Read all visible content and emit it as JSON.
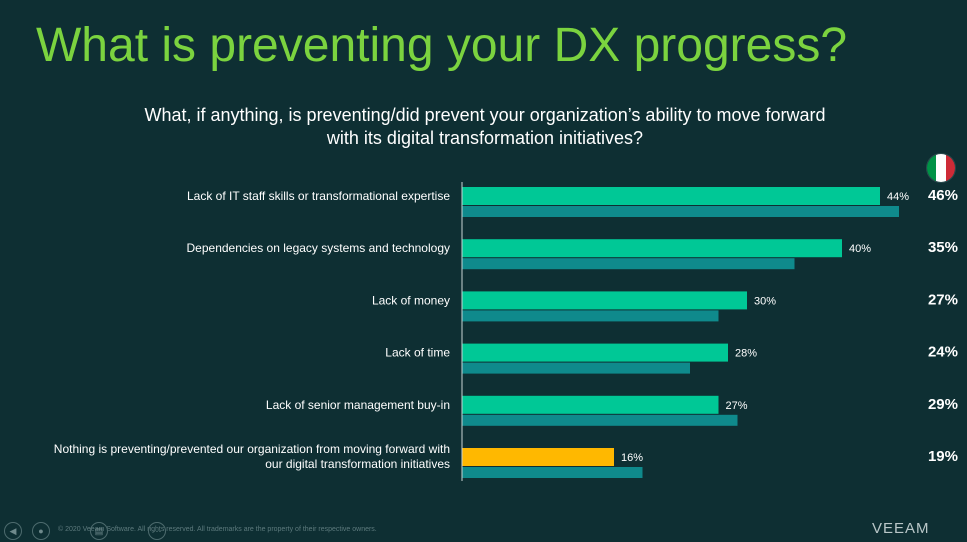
{
  "slide": {
    "title": "What is preventing your DX progress?",
    "subtitle": "What, if anything, is preventing/did prevent your organization’s ability to move forward with its digital transformation initiatives?"
  },
  "colors": {
    "background": "#0e2f33",
    "title": "#7bd33f",
    "bar_primary": "#00c896",
    "bar_secondary": "#0f8a8c",
    "bar_highlight": "#ffb800",
    "text": "#ffffff"
  },
  "chart_data": {
    "type": "bar",
    "orientation": "horizontal",
    "categories": [
      "Lack of IT staff skills or transformational expertise",
      "Dependencies on legacy systems and technology",
      "Lack of money",
      "Lack of time",
      "Lack of senior management buy-in",
      "Nothing is preventing/prevented our organization from moving forward with our digital transformation initiatives"
    ],
    "series": [
      {
        "values": [
          44,
          40,
          30,
          28,
          27,
          16
        ],
        "labels": [
          "44%",
          "40%",
          "30%",
          "28%",
          "27%",
          "16%"
        ],
        "color": "#00c896",
        "highlight_last": "#ffb800"
      },
      {
        "values": [
          46,
          35,
          27,
          24,
          29,
          19
        ],
        "labels": [
          "46%",
          "35%",
          "27%",
          "24%",
          "29%",
          "19%"
        ],
        "color": "#0f8a8c"
      }
    ],
    "xlim": [
      0,
      50
    ],
    "grid": false,
    "legend": "flag icon above right-column values"
  },
  "footer": {
    "text": "© 2020 Veeam Software. All rights reserved. All trademarks are the property of their respective owners.",
    "brand": "VEEAM"
  },
  "icons": {
    "flag": "italy-flag-icon",
    "prev": "prev-slide-icon",
    "home": "home-icon",
    "menu": "menu-icon",
    "more": "more-icon"
  }
}
